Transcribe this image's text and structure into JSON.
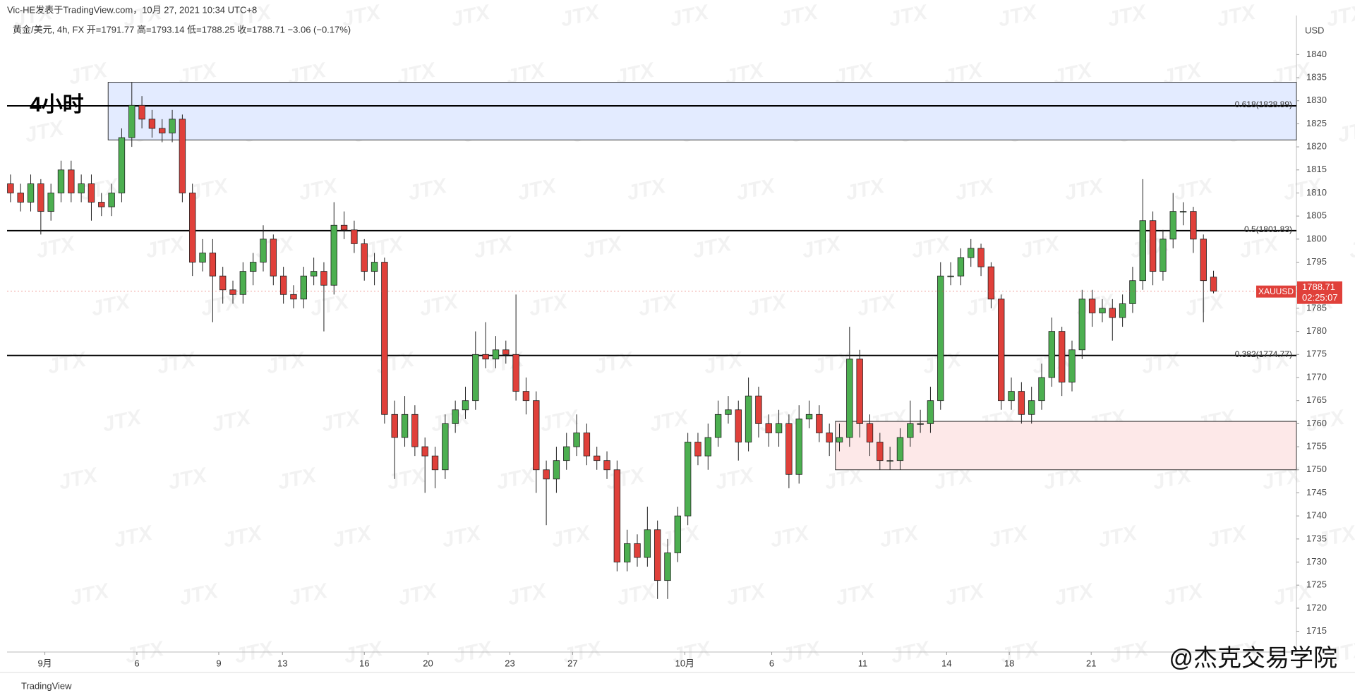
{
  "header": {
    "publisher": "Vic-HE发表于TradingView.com，10月 27, 2021 10:34 UTC+8",
    "legend": "黄金/美元, 4h, FX  开=1791.77  高=1793.14  低=1788.25  收=1788.71  −3.06 (−0.17%)"
  },
  "chart_data": {
    "type": "candlestick",
    "annotation": "4小时",
    "currency": "USD",
    "symbol": "XAUUSD",
    "countdown": "02:25:07",
    "watermark": "JTX",
    "brand": "TradingView",
    "signature": "@杰克交易学院",
    "up_color": "#4caf50",
    "down_color": "#e0403a",
    "xlim": [
      -0.34,
      127.2
    ],
    "ylim": [
      1710.5,
      1847.7
    ],
    "xticks": [
      {
        "value": 3.4,
        "label": "9月"
      },
      {
        "value": 12.5,
        "label": "6"
      },
      {
        "value": 20.6,
        "label": "9"
      },
      {
        "value": 26.9,
        "label": "13"
      },
      {
        "value": 35,
        "label": "16"
      },
      {
        "value": 41.3,
        "label": "20"
      },
      {
        "value": 49.4,
        "label": "23"
      },
      {
        "value": 55.6,
        "label": "27"
      },
      {
        "value": 66.7,
        "label": "10月"
      },
      {
        "value": 75.3,
        "label": "6"
      },
      {
        "value": 84.3,
        "label": "11"
      },
      {
        "value": 92.6,
        "label": "14"
      },
      {
        "value": 98.8,
        "label": "18"
      },
      {
        "value": 106.9,
        "label": "21"
      }
    ],
    "yticks": [
      1715,
      1720,
      1725,
      1730,
      1735,
      1740,
      1745,
      1750,
      1755,
      1760,
      1765,
      1770,
      1775,
      1780,
      1785,
      1790,
      1795,
      1800,
      1805,
      1810,
      1815,
      1820,
      1825,
      1830,
      1835,
      1840
    ],
    "hlines": [
      {
        "value": 1828.89,
        "label": "0.618(1828.89)"
      },
      {
        "value": 1801.83,
        "label": "0.5(1801.83)"
      },
      {
        "value": 1774.77,
        "label": "0.382(1774.77)"
      }
    ],
    "zones": [
      {
        "x0": 9.66,
        "y0": 1821.5,
        "y1": 1834,
        "color": "#e3ebff"
      },
      {
        "x0": 81.6,
        "y0": 1750,
        "y1": 1760.5,
        "color": "#fde8e8"
      }
    ],
    "open": [
      1812,
      1810,
      1808,
      1812,
      1806,
      1810,
      1815,
      1810,
      1812,
      1808,
      1807,
      1810,
      1822,
      1829,
      1826,
      1824,
      1823,
      1826,
      1810,
      1795,
      1797,
      1792,
      1789,
      1788,
      1793,
      1795,
      1800,
      1792,
      1788,
      1787,
      1792,
      1793,
      1790,
      1803,
      1802,
      1799,
      1793,
      1795,
      1762,
      1757,
      1762,
      1755,
      1753,
      1750,
      1760,
      1763,
      1765,
      1775,
      1774,
      1776,
      1775,
      1767,
      1765,
      1750,
      1748,
      1752,
      1755,
      1758,
      1753,
      1752,
      1750,
      1730,
      1734,
      1731,
      1737,
      1726,
      1732,
      1740,
      1756,
      1753,
      1757,
      1762,
      1763,
      1756,
      1766,
      1760,
      1758,
      1760,
      1749,
      1761,
      1762,
      1758,
      1756,
      1757,
      1774,
      1760,
      1756,
      1752,
      1752,
      1757,
      1760,
      1760,
      1765,
      1792,
      1792,
      1796,
      1798,
      1794,
      1787,
      1765,
      1767,
      1762,
      1765,
      1770,
      1780,
      1769,
      1776,
      1787,
      1784,
      1785,
      1783,
      1786,
      1791,
      1804,
      1793,
      1800,
      1806,
      1806,
      1800,
      1791.77
    ],
    "high": [
      1814,
      1812,
      1814,
      1813,
      1812,
      1817,
      1817,
      1814,
      1814,
      1810,
      1812,
      1824,
      1834,
      1831,
      1828,
      1826,
      1828,
      1827,
      1812,
      1800,
      1800,
      1794,
      1791,
      1795,
      1797,
      1803,
      1801,
      1794,
      1790,
      1794,
      1796,
      1795,
      1808,
      1806,
      1804,
      1800,
      1797,
      1796,
      1765,
      1766,
      1764,
      1757,
      1755,
      1762,
      1765,
      1768,
      1780,
      1782,
      1779,
      1778,
      1788,
      1770,
      1767,
      1752,
      1755,
      1758,
      1762,
      1760,
      1755,
      1754,
      1752,
      1737,
      1736,
      1742,
      1739,
      1735,
      1742,
      1758,
      1758,
      1760,
      1765,
      1766,
      1765,
      1770,
      1768,
      1762,
      1763,
      1762,
      1764,
      1765,
      1764,
      1760,
      1760,
      1781,
      1776,
      1762,
      1758,
      1755,
      1759,
      1765,
      1763,
      1768,
      1795,
      1795,
      1798,
      1800,
      1799,
      1795,
      1788,
      1770,
      1769,
      1768,
      1773,
      1783,
      1781,
      1778,
      1789,
      1789,
      1787,
      1787,
      1788,
      1794,
      1813,
      1806,
      1802,
      1810,
      1808,
      1807,
      1801,
      1793.14
    ],
    "low": [
      1808,
      1806,
      1806,
      1801,
      1804,
      1808,
      1808,
      1808,
      1804,
      1805,
      1805,
      1808,
      1820,
      1824,
      1822,
      1821,
      1821,
      1808,
      1792,
      1793,
      1782,
      1786,
      1786,
      1786,
      1790,
      1793,
      1790,
      1786,
      1785,
      1785,
      1790,
      1780,
      1788,
      1800,
      1797,
      1791,
      1790,
      1760,
      1748,
      1755,
      1753,
      1745,
      1746,
      1748,
      1758,
      1761,
      1763,
      1772,
      1772,
      1773,
      1765,
      1762,
      1745,
      1738,
      1745,
      1750,
      1753,
      1751,
      1750,
      1748,
      1728,
      1728,
      1729,
      1729,
      1722,
      1722,
      1730,
      1738,
      1751,
      1750,
      1755,
      1760,
      1752,
      1754,
      1757,
      1755,
      1755,
      1746,
      1747,
      1759,
      1756,
      1753,
      1754,
      1755,
      1757,
      1753,
      1750,
      1750,
      1750,
      1755,
      1758,
      1758,
      1763,
      1790,
      1790,
      1794,
      1792,
      1785,
      1763,
      1763,
      1760,
      1760,
      1763,
      1768,
      1766,
      1767,
      1774,
      1781,
      1782,
      1778,
      1781,
      1784,
      1789,
      1790,
      1791,
      1798,
      1803,
      1797,
      1782,
      1788.25
    ],
    "close": [
      1810,
      1808,
      1812,
      1806,
      1810,
      1815,
      1810,
      1812,
      1808,
      1807,
      1810,
      1822,
      1829,
      1826,
      1824,
      1823,
      1826,
      1810,
      1795,
      1797,
      1792,
      1789,
      1788,
      1793,
      1795,
      1800,
      1792,
      1788,
      1787,
      1792,
      1793,
      1790,
      1803,
      1802,
      1799,
      1793,
      1795,
      1762,
      1757,
      1762,
      1755,
      1753,
      1750,
      1760,
      1763,
      1765,
      1775,
      1774,
      1776,
      1775,
      1767,
      1765,
      1750,
      1748,
      1752,
      1755,
      1758,
      1753,
      1752,
      1750,
      1730,
      1734,
      1731,
      1737,
      1726,
      1732,
      1740,
      1756,
      1753,
      1757,
      1762,
      1763,
      1756,
      1766,
      1760,
      1758,
      1760,
      1749,
      1761,
      1762,
      1758,
      1756,
      1757,
      1774,
      1760,
      1756,
      1752,
      1752,
      1757,
      1760,
      1760,
      1765,
      1792,
      1792,
      1796,
      1798,
      1794,
      1787,
      1765,
      1767,
      1762,
      1765,
      1770,
      1780,
      1769,
      1776,
      1787,
      1784,
      1785,
      1783,
      1786,
      1791,
      1804,
      1793,
      1800,
      1806,
      1806,
      1800,
      1791,
      1788.71
    ]
  }
}
